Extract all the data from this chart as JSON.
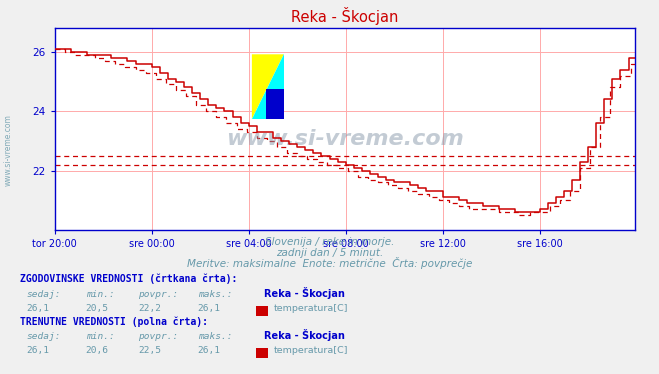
{
  "title": "Reka - Škocjan",
  "title_color": "#cc0000",
  "bg_color": "#f0f0f0",
  "plot_bg_color": "#ffffff",
  "grid_color": "#ffaaaa",
  "axis_color": "#0000cc",
  "text_color": "#6699aa",
  "xlabel_ticks": [
    "tor 20:00",
    "sre 00:00",
    "sre 04:00",
    "sre 08:00",
    "sre 12:00",
    "sre 16:00"
  ],
  "yticks": [
    22,
    24,
    26
  ],
  "ylim": [
    20.0,
    26.8
  ],
  "xlim": [
    0,
    287
  ],
  "tick_positions": [
    0,
    48,
    96,
    144,
    192,
    240
  ],
  "avg_dashed_value1": 22.2,
  "avg_dashed_value2": 22.5,
  "solid_line_color": "#cc0000",
  "dashed_line_color": "#cc0000",
  "watermark_color": "#8899aa",
  "watermark_text": "www.si-vreme.com",
  "subtitle1": "Slovenija / reke in morje.",
  "subtitle2": "zadnji dan / 5 minut.",
  "subtitle3": "Meritve: maksimalne  Enote: metrične  Črta: povprečje",
  "subtitle_color": "#6699aa",
  "hist_label": "ZGODOVINSKE VREDNOSTI (črtkana črta):",
  "curr_label": "TRENUTNE VREDNOSTI (polna črta):",
  "table_color": "#0000cc",
  "headers": [
    "sedaj:",
    "min.:",
    "povpr.:",
    "maks.:"
  ],
  "hist_values": [
    "26,1",
    "20,5",
    "22,2",
    "26,1"
  ],
  "curr_values": [
    "26,1",
    "20,6",
    "22,5",
    "26,1"
  ],
  "station_name": "Reka - Škocjan",
  "param_name": "temperatura[C]",
  "legend_color": "#cc0000",
  "logo_yellow": "#ffff00",
  "logo_cyan": "#00ffff",
  "logo_blue": "#0000cc"
}
